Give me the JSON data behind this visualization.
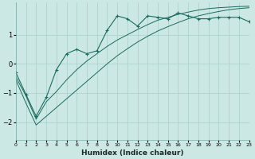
{
  "xlabel": "Humidex (Indice chaleur)",
  "bg_color": "#cce8e5",
  "line_color": "#1a6b5e",
  "grid_color": "#aacfcc",
  "xlim": [
    0,
    23
  ],
  "ylim": [
    -2.6,
    2.1
  ],
  "yticks": [
    -2,
    -1,
    0,
    1
  ],
  "xticks": [
    0,
    1,
    2,
    3,
    4,
    5,
    6,
    7,
    8,
    9,
    10,
    11,
    12,
    13,
    14,
    15,
    16,
    17,
    18,
    19,
    20,
    21,
    22,
    23
  ],
  "line1_x": [
    0,
    1,
    2,
    3,
    4,
    5,
    6,
    7,
    8,
    9,
    10,
    11,
    12,
    13,
    14,
    15,
    16,
    17,
    18,
    19,
    20,
    21,
    22,
    23
  ],
  "line1_y": [
    -0.3,
    -1.05,
    -1.8,
    -1.15,
    -0.2,
    0.35,
    0.5,
    0.35,
    0.45,
    1.15,
    1.65,
    1.55,
    1.3,
    1.65,
    1.6,
    1.55,
    1.75,
    1.65,
    1.55,
    1.55,
    1.6,
    1.6,
    1.6,
    1.45
  ],
  "line2_x": [
    0,
    1,
    2,
    3,
    4,
    5,
    6,
    7,
    8,
    9,
    10,
    11,
    12,
    13,
    14,
    15,
    16,
    17,
    18,
    19,
    20,
    21,
    22,
    23
  ],
  "line2_y": [
    -0.45,
    -1.1,
    -1.9,
    -1.3,
    -0.95,
    -0.55,
    -0.2,
    0.1,
    0.35,
    0.6,
    0.82,
    1.0,
    1.18,
    1.35,
    1.5,
    1.6,
    1.7,
    1.78,
    1.85,
    1.9,
    1.93,
    1.95,
    1.97,
    1.98
  ],
  "line3_x": [
    0,
    1,
    2,
    3,
    4,
    5,
    6,
    7,
    8,
    9,
    10,
    11,
    12,
    13,
    14,
    15,
    16,
    17,
    18,
    19,
    20,
    21,
    22,
    23
  ],
  "line3_y": [
    -0.55,
    -1.35,
    -2.1,
    -1.8,
    -1.5,
    -1.2,
    -0.9,
    -0.6,
    -0.3,
    0.0,
    0.28,
    0.52,
    0.75,
    0.95,
    1.13,
    1.28,
    1.42,
    1.55,
    1.65,
    1.73,
    1.8,
    1.86,
    1.9,
    1.93
  ]
}
